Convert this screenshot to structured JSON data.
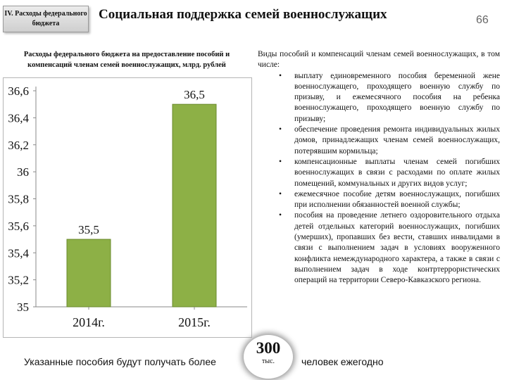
{
  "header": {
    "section_tab": "IV. Расходы федерального бюджета",
    "title": "Социальная поддержка семей военнослужащих",
    "page_number": "66"
  },
  "chart_title": "Расходы федерального бюджета на предоставление пособий и компенсаций членам семей военнослужащих, млрд. рублей",
  "chart_data": {
    "type": "bar",
    "categories": [
      "2014г.",
      "2015г."
    ],
    "values": [
      35.5,
      36.5
    ],
    "data_labels": [
      "35,5",
      "36,5"
    ],
    "ylim": [
      35,
      36.6
    ],
    "yticks": [
      "35",
      "35,2",
      "35,4",
      "35,6",
      "35,8",
      "36",
      "36,2",
      "36,4",
      "36,6"
    ],
    "ytick_values": [
      35,
      35.2,
      35.4,
      35.6,
      35.8,
      36,
      36.2,
      36.4,
      36.6
    ],
    "grid": false,
    "bar_color": "#8db046",
    "bar_edge_color": "#6a8a2e"
  },
  "right_text": {
    "intro": "Виды пособий и компенсаций членам семей военнослужащих, в том числе:",
    "items": [
      "выплату единовременного пособия беременной жене военнослужащего, проходящего военную службу по призыву, и ежемесячного пособия на ребенка военнослужащего, проходящего военную службу по призыву;",
      "обеспечение проведения ремонта индивидуальных жилых домов, принадлежащих членам семей военнослужащих, потерявшим кормильца;",
      "компенсационные выплаты членам семей погибших военнослужащих в связи с расходами по оплате жилых помещений, коммунальных и других видов услуг;",
      "ежемесячное пособие детям военнослужащих, погибших при исполнении обязанностей военной службы;",
      "пособия на проведение летнего оздоровительного отдыха детей отдельных категорий военнослужащих, погибших (умерших), пропавших без вести, ставших инвалидами в связи с выполнением задач в условиях вооруженного конфликта немеждународного характера, а также в связи с выполнением задач в ходе контртеррористических операций на территории Северо-Кавказского региона."
    ],
    "bullet": "•"
  },
  "bottom": {
    "left_text": "Указанные пособия будут получать более",
    "highlight_number": "300",
    "highlight_unit": "тыс.",
    "right_text": "человек ежегодно"
  }
}
